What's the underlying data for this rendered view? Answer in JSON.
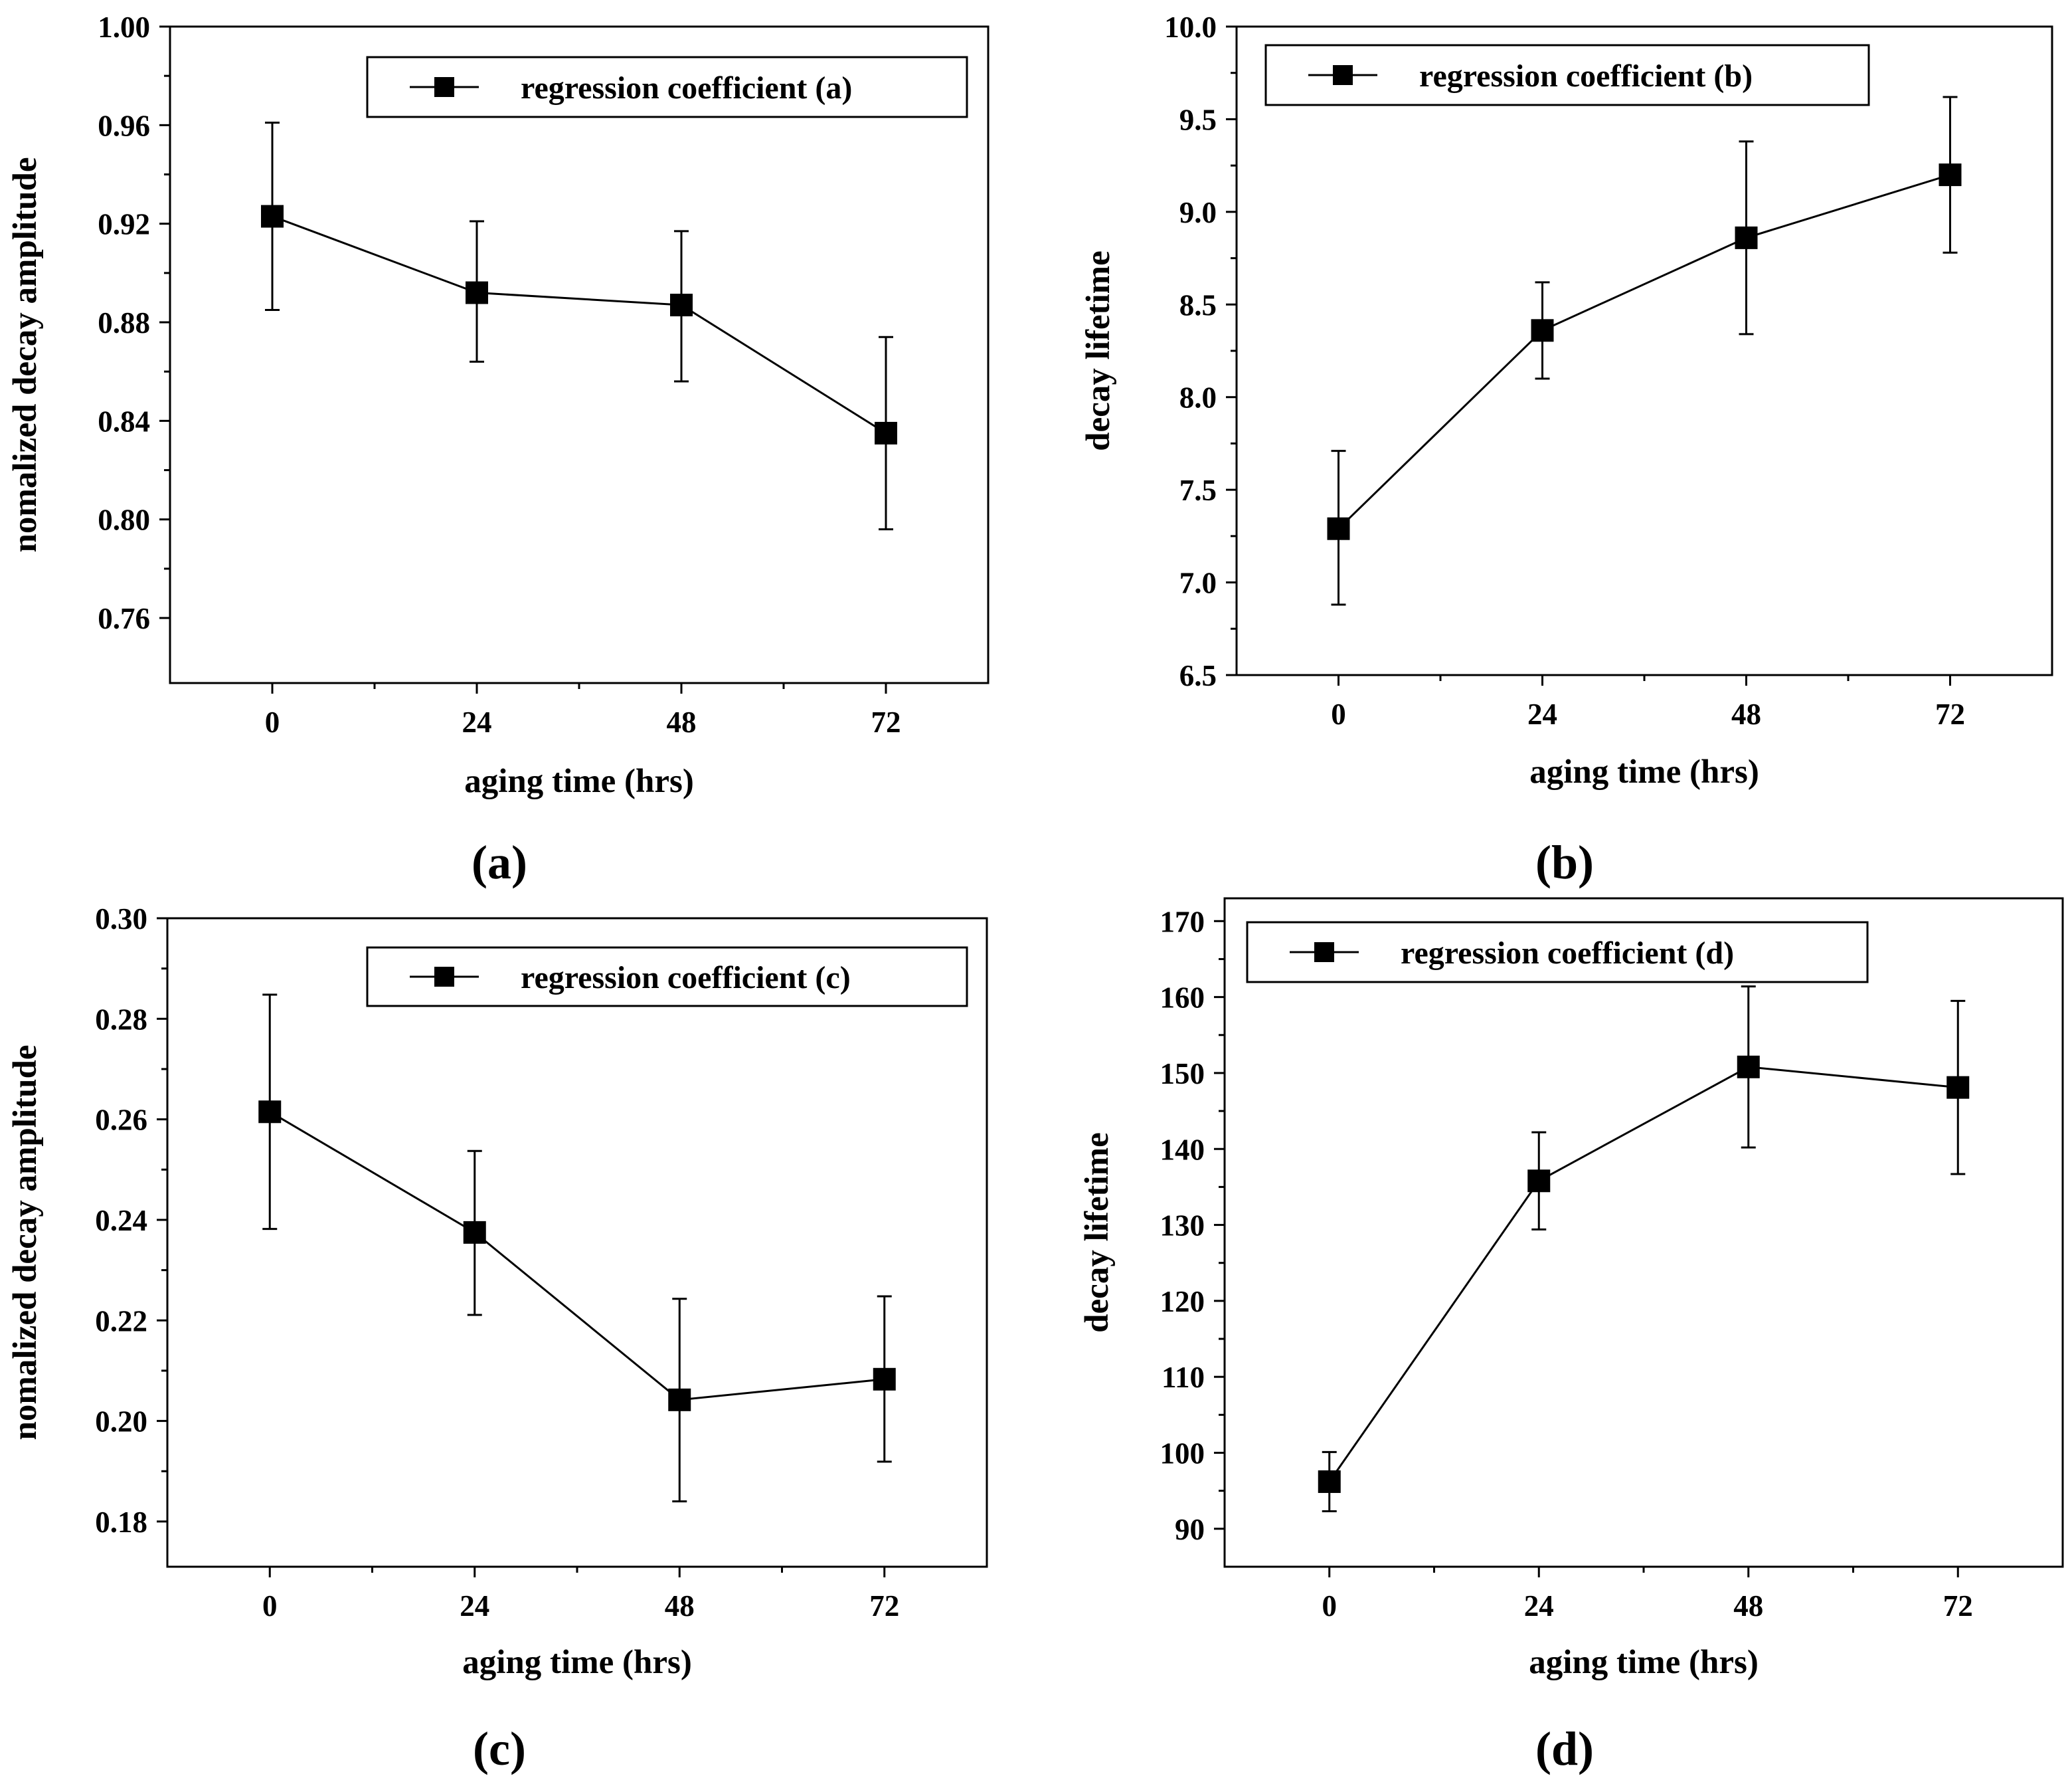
{
  "figure": {
    "background": "#ffffff",
    "ink": "#000000"
  },
  "chart_data": [
    {
      "id": "a",
      "type": "line",
      "caption": "(a)",
      "xlabel": "aging time (hrs)",
      "ylabel": "nomalized decay amplitude",
      "legend": "regression coefficient (a)",
      "legend_loc": "top-right",
      "x": [
        0,
        24,
        48,
        72
      ],
      "y": [
        0.923,
        0.892,
        0.887,
        0.835
      ],
      "err_low": [
        0.885,
        0.864,
        0.856,
        0.796
      ],
      "err_high": [
        0.961,
        0.921,
        0.917,
        0.874
      ],
      "xlim": [
        -12,
        84
      ],
      "ylim": [
        0.7336,
        1.0
      ],
      "xticks": [
        0,
        24,
        48,
        72
      ],
      "xtick_labels": [
        "0",
        "24",
        "48",
        "72"
      ],
      "yticks": [
        0.76,
        0.8,
        0.84,
        0.88,
        0.92,
        0.96,
        1.0
      ],
      "ytick_labels": [
        "0.76",
        "0.80",
        "0.84",
        "0.88",
        "0.92",
        "0.96",
        "1.00"
      ],
      "grid": false
    },
    {
      "id": "b",
      "type": "line",
      "caption": "(b)",
      "xlabel": "aging time (hrs)",
      "ylabel": "decay lifetime",
      "legend": "regression coefficient (b)",
      "legend_loc": "top-left",
      "x": [
        0,
        24,
        48,
        72
      ],
      "y": [
        7.29,
        8.36,
        8.86,
        9.2
      ],
      "err_low": [
        6.88,
        8.1,
        8.34,
        8.78
      ],
      "err_high": [
        7.71,
        8.62,
        9.38,
        9.62
      ],
      "xlim": [
        -12,
        84
      ],
      "ylim": [
        6.5,
        10.0
      ],
      "xticks": [
        0,
        24,
        48,
        72
      ],
      "xtick_labels": [
        "0",
        "24",
        "48",
        "72"
      ],
      "yticks": [
        6.5,
        7.0,
        7.5,
        8.0,
        8.5,
        9.0,
        9.5,
        10.0
      ],
      "ytick_labels": [
        "6.5",
        "7.0",
        "7.5",
        "8.0",
        "8.5",
        "9.0",
        "9.5",
        "10.0"
      ],
      "grid": false
    },
    {
      "id": "c",
      "type": "line",
      "caption": "(c)",
      "xlabel": "aging time (hrs)",
      "ylabel": "nomalized decay amplitude",
      "legend": "regression coefficient (c)",
      "legend_loc": "top-right",
      "x": [
        0,
        24,
        48,
        72
      ],
      "y": [
        0.2615,
        0.2375,
        0.2042,
        0.2083
      ],
      "err_low": [
        0.2382,
        0.2211,
        0.184,
        0.1919
      ],
      "err_high": [
        0.2848,
        0.2537,
        0.2243,
        0.2248
      ],
      "xlim": [
        -12,
        84
      ],
      "ylim": [
        0.171,
        0.3
      ],
      "xticks": [
        0,
        24,
        48,
        72
      ],
      "xtick_labels": [
        "0",
        "24",
        "48",
        "72"
      ],
      "yticks": [
        0.18,
        0.2,
        0.22,
        0.24,
        0.26,
        0.28,
        0.3
      ],
      "ytick_labels": [
        "0.18",
        "0.20",
        "0.22",
        "0.24",
        "0.26",
        "0.28",
        "0.30"
      ],
      "grid": false
    },
    {
      "id": "d",
      "type": "line",
      "caption": "(d)",
      "xlabel": "aging time (hrs)",
      "ylabel": "decay lifetime",
      "legend": "regression coefficient (d)",
      "legend_loc": "top-left",
      "x": [
        0,
        24,
        48,
        72
      ],
      "y": [
        96.2,
        135.8,
        150.8,
        148.1
      ],
      "err_low": [
        92.3,
        129.4,
        140.2,
        136.7
      ],
      "err_high": [
        100.1,
        142.2,
        161.4,
        159.5
      ],
      "xlim": [
        -12,
        84
      ],
      "ylim": [
        85.0,
        173.0
      ],
      "xticks": [
        0,
        24,
        48,
        72
      ],
      "xtick_labels": [
        "0",
        "24",
        "48",
        "72"
      ],
      "yticks": [
        90,
        100,
        110,
        120,
        130,
        140,
        150,
        160,
        170
      ],
      "ytick_labels": [
        "90",
        "100",
        "110",
        "120",
        "130",
        "140",
        "150",
        "160",
        "170"
      ],
      "grid": false
    }
  ]
}
